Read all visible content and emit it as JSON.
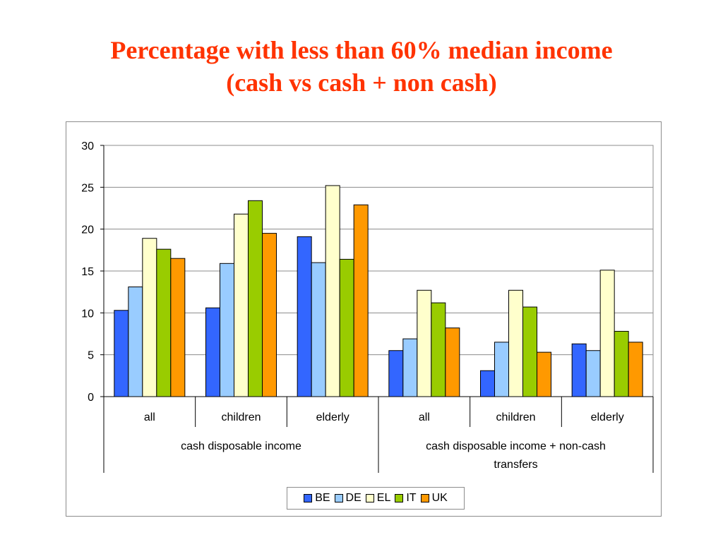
{
  "title": {
    "line1": "Percentage with less than 60% median income",
    "line2": "(cash vs cash + non cash)"
  },
  "chart_data": {
    "type": "bar",
    "title": "Percentage with less than 60% median income (cash vs cash + non cash)",
    "groups": [
      {
        "label": "cash disposable income",
        "categories": [
          "all",
          "children",
          "elderly"
        ]
      },
      {
        "label": "cash disposable income + non-cash transfers",
        "label_lines": [
          "cash disposable income + non-cash",
          "transfers"
        ],
        "categories": [
          "all",
          "children",
          "elderly"
        ]
      }
    ],
    "categories": [
      "all",
      "children",
      "elderly",
      "all",
      "children",
      "elderly"
    ],
    "series": [
      {
        "name": "BE",
        "color": "#3366ff",
        "values": [
          10.3,
          10.6,
          19.1,
          5.5,
          3.1,
          6.3
        ]
      },
      {
        "name": "DE",
        "color": "#99ccff",
        "values": [
          13.1,
          15.9,
          16.0,
          6.9,
          6.5,
          5.5
        ]
      },
      {
        "name": "EL",
        "color": "#ffffcc",
        "values": [
          18.9,
          21.8,
          25.2,
          12.7,
          12.7,
          15.1
        ]
      },
      {
        "name": "IT",
        "color": "#99cc00",
        "values": [
          17.6,
          23.4,
          16.4,
          11.2,
          10.7,
          7.8
        ]
      },
      {
        "name": "UK",
        "color": "#ff9900",
        "values": [
          16.5,
          19.5,
          22.9,
          8.2,
          5.3,
          6.5
        ]
      }
    ],
    "ylim": [
      0,
      30
    ],
    "yticks": [
      0,
      5,
      10,
      15,
      20,
      25,
      30
    ],
    "xlabel": "",
    "ylabel": "",
    "grid": true,
    "legend": "bottom"
  }
}
